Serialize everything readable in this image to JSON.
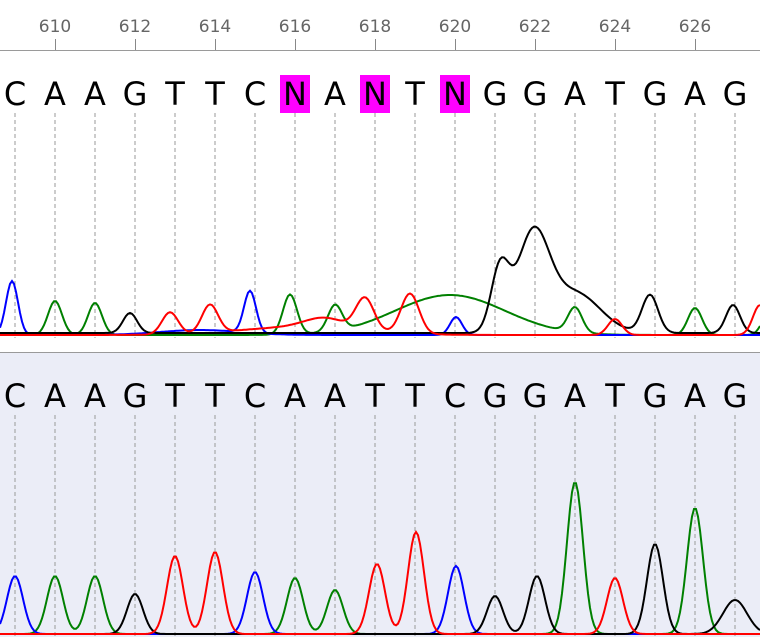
{
  "ruler": {
    "positions": [
      "610",
      "612",
      "614",
      "616",
      "618",
      "620",
      "622",
      "624",
      "626"
    ]
  },
  "colors": {
    "A": "#008000",
    "C": "#0000ff",
    "G": "#000000",
    "T": "#ff0000",
    "highlight": "#ff00ff",
    "bottom_bg": "#ebedf7"
  },
  "top_track": {
    "bases": [
      "C",
      "A",
      "A",
      "G",
      "T",
      "T",
      "C",
      "N",
      "A",
      "N",
      "T",
      "N",
      "G",
      "G",
      "A",
      "T",
      "G",
      "A",
      "G"
    ],
    "highlighted_indices": [
      7,
      9,
      11
    ]
  },
  "bottom_track": {
    "bases": [
      "C",
      "A",
      "A",
      "G",
      "T",
      "T",
      "C",
      "A",
      "A",
      "T",
      "T",
      "C",
      "G",
      "G",
      "A",
      "T",
      "G",
      "A",
      "G"
    ]
  }
}
